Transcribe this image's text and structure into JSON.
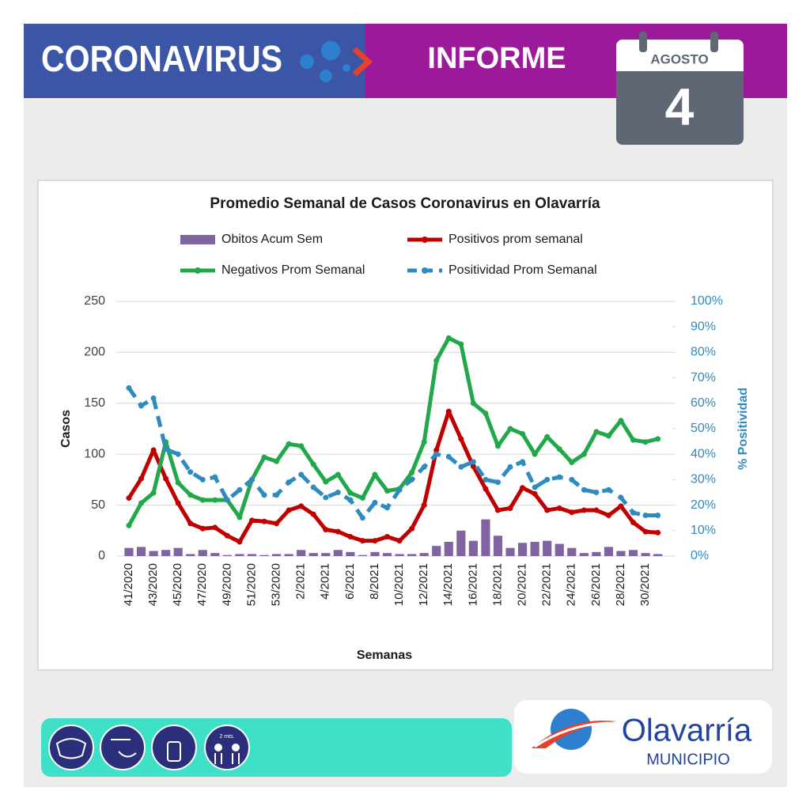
{
  "header": {
    "title": "CORONAVIRUS",
    "section": "INFORME",
    "month": "AGOSTO",
    "day": "4"
  },
  "chart_data": {
    "type": "combo",
    "title": "Promedio Semanal de Casos Coronavirus en Olavarría",
    "x_label": "Semanas",
    "y_label": "Casos",
    "y2_label": "% Positividad",
    "categories": [
      "41/2020",
      null,
      "43/2020",
      null,
      "45/2020",
      null,
      "47/2020",
      null,
      "49/2020",
      null,
      "51/2020",
      null,
      "53/2020",
      null,
      "2/2021",
      null,
      "4/2021",
      null,
      "6/2021",
      null,
      "8/2021",
      null,
      "10/2021",
      null,
      "12/2021",
      null,
      "14/2021",
      null,
      "16/2021",
      null,
      "18/2021",
      null,
      "20/2021",
      null,
      "22/2021",
      null,
      "24/2021",
      null,
      "26/2021",
      null,
      "28/2021",
      null,
      "30/2021",
      null
    ],
    "series": [
      {
        "name": "Obitos Acum Sem",
        "type": "bar",
        "color": "#8064a2",
        "values": [
          8,
          9,
          5,
          6,
          8,
          2,
          6,
          3,
          1,
          2,
          2,
          1,
          2,
          2,
          6,
          3,
          3,
          6,
          4,
          1,
          4,
          3,
          2,
          2,
          3,
          10,
          14,
          25,
          15,
          36,
          20,
          8,
          13,
          14,
          15,
          12,
          8,
          3,
          4,
          9,
          5,
          6,
          3,
          2
        ]
      },
      {
        "name": "Positivos prom semanal",
        "type": "line",
        "color": "#c00000",
        "values": [
          57,
          76,
          104,
          76,
          52,
          32,
          27,
          28,
          20,
          14,
          35,
          34,
          32,
          45,
          49,
          41,
          26,
          24,
          19,
          15,
          15,
          19,
          15,
          27,
          50,
          104,
          142,
          115,
          88,
          66,
          45,
          47,
          67,
          61,
          45,
          47,
          43,
          45,
          45,
          40,
          49,
          33,
          24,
          23
        ]
      },
      {
        "name": "Negativos Prom Semanal",
        "type": "line",
        "color": "#22a84a",
        "values": [
          30,
          52,
          62,
          112,
          72,
          60,
          55,
          55,
          55,
          38,
          75,
          97,
          93,
          110,
          108,
          90,
          73,
          80,
          62,
          57,
          80,
          64,
          66,
          82,
          112,
          192,
          214,
          208,
          150,
          140,
          108,
          125,
          120,
          100,
          117,
          105,
          92,
          100,
          122,
          118,
          133,
          114,
          112,
          115
        ]
      },
      {
        "name": "Positividad Prom Semanal",
        "type": "line",
        "dashed": true,
        "axis": "y2",
        "color": "#2e8bc0",
        "values": [
          66,
          59,
          62,
          42,
          40,
          33,
          30,
          31,
          22,
          26,
          30,
          24,
          24,
          29,
          32,
          27,
          23,
          25,
          22,
          15,
          21,
          19,
          26,
          30,
          35,
          40,
          39,
          35,
          37,
          30,
          29,
          35,
          37,
          27,
          30,
          31,
          30,
          26,
          25,
          26,
          23,
          17,
          16,
          16
        ]
      }
    ],
    "ylim": [
      0,
      250
    ],
    "yticks": [
      0,
      50,
      100,
      150,
      200,
      250
    ],
    "y2lim": [
      0,
      100
    ],
    "y2ticks": [
      {
        "value": 0,
        "label": "0%"
      },
      {
        "value": 10,
        "label": "10%"
      },
      {
        "value": 20,
        "label": "20%"
      },
      {
        "value": 30,
        "label": "30%"
      },
      {
        "value": 40,
        "label": "40%"
      },
      {
        "value": 50,
        "label": "50%"
      },
      {
        "value": 60,
        "label": "60%"
      },
      {
        "value": 70,
        "label": "70%"
      },
      {
        "value": 80,
        "label": "80%"
      },
      {
        "value": 90,
        "label": "90%"
      },
      {
        "value": 100,
        "label": "100%"
      }
    ],
    "grid": true,
    "legend": "top"
  },
  "footer": {
    "icon_text": "2 mts.",
    "logo_name": "Olavarría",
    "logo_sub": "MUNICIPIO"
  }
}
